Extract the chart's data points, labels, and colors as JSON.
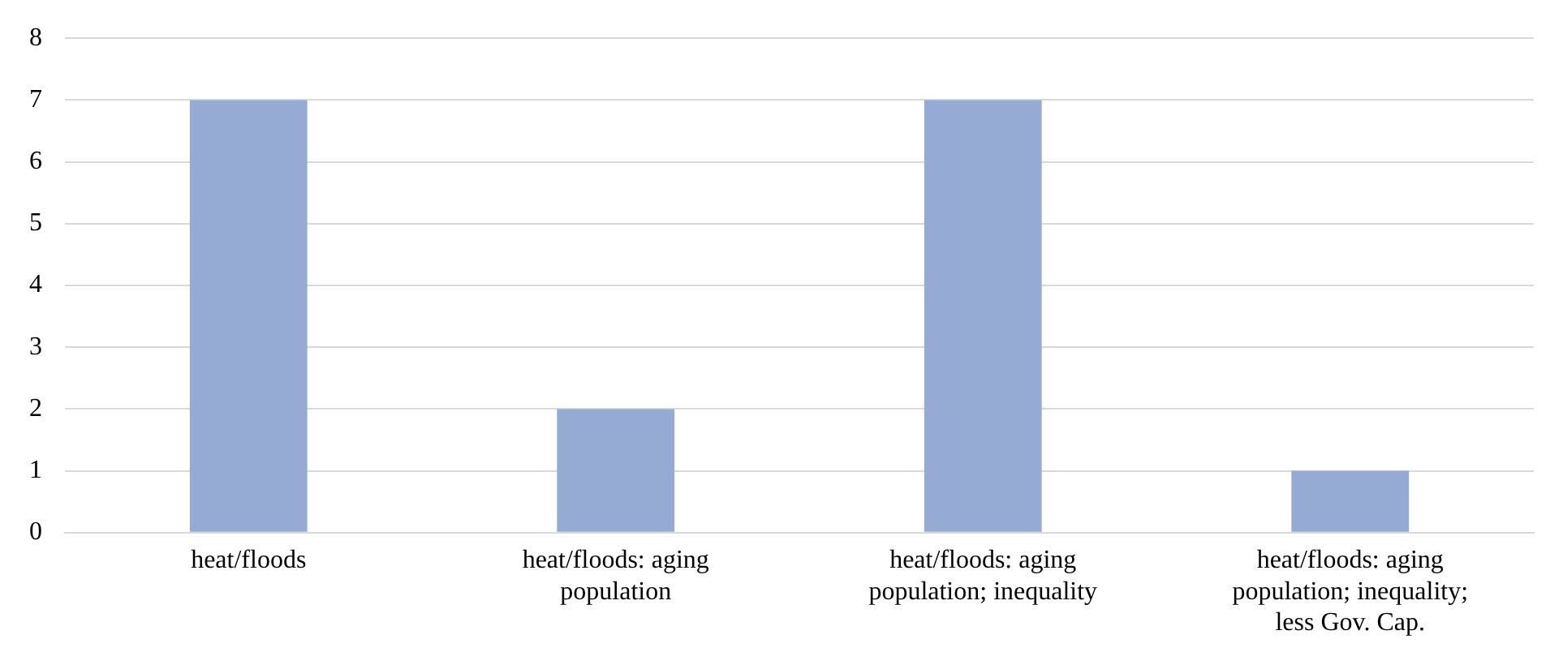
{
  "chart_data": {
    "type": "bar",
    "categories": [
      "heat/floods",
      "heat/floods: aging population",
      "heat/floods: aging population; inequality",
      "heat/floods: aging population; inequality; less Gov. Cap."
    ],
    "values": [
      7,
      2,
      7,
      1
    ],
    "color": "#95abd3",
    "ylim": [
      0,
      8
    ],
    "yticks": [
      0,
      1,
      2,
      3,
      4,
      5,
      6,
      7,
      8
    ],
    "grid": "y",
    "legend": false
  }
}
